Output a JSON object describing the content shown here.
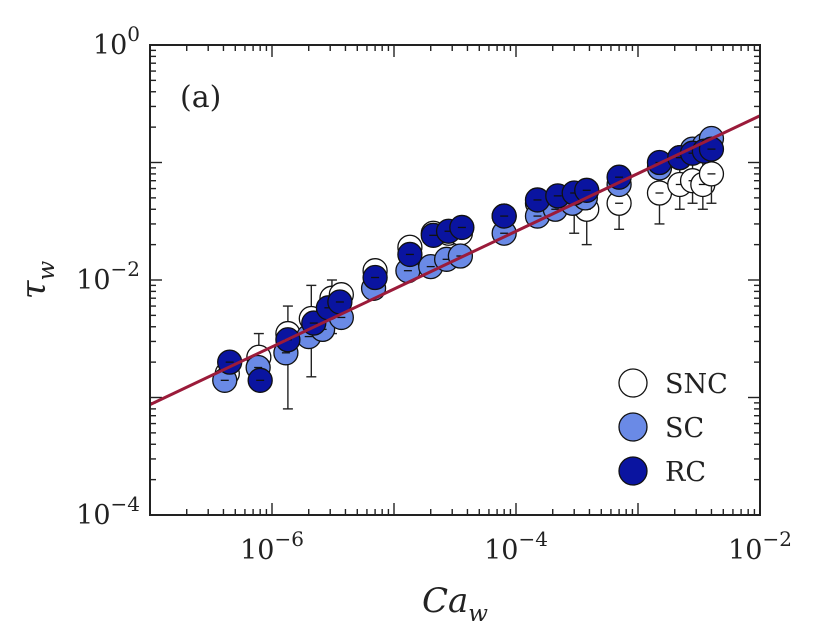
{
  "chart_data": {
    "type": "scatter",
    "panel_label": "(a)",
    "xlabel": "Ca_w",
    "ylabel": "τ_w",
    "xscale": "log",
    "yscale": "log",
    "xlim": [
      1e-07,
      0.01
    ],
    "ylim": [
      0.0001,
      1
    ],
    "grid": false,
    "legend_position": "bottom-right",
    "x_tick_labels": [
      {
        "value": 1e-06,
        "base": "10",
        "exp": "−6"
      },
      {
        "value": 0.0001,
        "base": "10",
        "exp": "−4"
      },
      {
        "value": 0.01,
        "base": "10",
        "exp": "−2"
      }
    ],
    "y_tick_labels": [
      {
        "value": 1,
        "base": "10",
        "exp": "0"
      },
      {
        "value": 0.01,
        "base": "10",
        "exp": "−2"
      },
      {
        "value": 0.0001,
        "base": "10",
        "exp": "−4"
      }
    ],
    "fit_line": {
      "name": "power-law fit",
      "color": "#9b1b3a",
      "points": [
        [
          1e-07,
          0.00087
        ],
        [
          0.01,
          0.25
        ]
      ]
    },
    "series": [
      {
        "name": "SNC",
        "fill": "#ffffff",
        "points": [
          {
            "x": 4.3e-07,
            "y": 0.0016,
            "lo": 0.0016,
            "hi": 0.0016
          },
          {
            "x": 7.8e-07,
            "y": 0.0022,
            "lo": 0.0017,
            "hi": 0.0035
          },
          {
            "x": 1.35e-06,
            "y": 0.0035,
            "lo": 0.0008,
            "hi": 0.006
          },
          {
            "x": 2.1e-06,
            "y": 0.0047,
            "lo": 0.0015,
            "hi": 0.009
          },
          {
            "x": 3.1e-06,
            "y": 0.007,
            "lo": 0.0035,
            "hi": 0.01
          },
          {
            "x": 3.7e-06,
            "y": 0.0075,
            "lo": 0.005,
            "hi": 0.009
          },
          {
            "x": 7e-06,
            "y": 0.012,
            "lo": 0.011,
            "hi": 0.013
          },
          {
            "x": 1.35e-05,
            "y": 0.019,
            "lo": 0.019,
            "hi": 0.019
          },
          {
            "x": 2.1e-05,
            "y": 0.025,
            "lo": 0.025,
            "hi": 0.025
          },
          {
            "x": 2.8e-05,
            "y": 0.025,
            "lo": 0.025,
            "hi": 0.025
          },
          {
            "x": 3.5e-05,
            "y": 0.025,
            "lo": 0.025,
            "hi": 0.025
          },
          {
            "x": 8e-05,
            "y": 0.035,
            "lo": 0.035,
            "hi": 0.035
          },
          {
            "x": 0.00015,
            "y": 0.045,
            "lo": 0.045,
            "hi": 0.045
          },
          {
            "x": 0.00021,
            "y": 0.045,
            "lo": 0.04,
            "hi": 0.05
          },
          {
            "x": 0.0003,
            "y": 0.045,
            "lo": 0.025,
            "hi": 0.055
          },
          {
            "x": 0.00038,
            "y": 0.04,
            "lo": 0.02,
            "hi": 0.06
          },
          {
            "x": 0.0007,
            "y": 0.045,
            "lo": 0.027,
            "hi": 0.06
          },
          {
            "x": 0.0015,
            "y": 0.055,
            "lo": 0.03,
            "hi": 0.08
          },
          {
            "x": 0.0022,
            "y": 0.065,
            "lo": 0.04,
            "hi": 0.09
          },
          {
            "x": 0.0028,
            "y": 0.07,
            "lo": 0.045,
            "hi": 0.1
          },
          {
            "x": 0.0034,
            "y": 0.065,
            "lo": 0.04,
            "hi": 0.1
          },
          {
            "x": 0.004,
            "y": 0.08,
            "lo": 0.045,
            "hi": 0.11
          }
        ]
      },
      {
        "name": "SC",
        "fill": "#6a8ae6",
        "points": [
          {
            "x": 4.1e-07,
            "y": 0.0014,
            "lo": 0.0014,
            "hi": 0.0014
          },
          {
            "x": 7.7e-07,
            "y": 0.0018,
            "lo": 0.0018,
            "hi": 0.0018
          },
          {
            "x": 1.3e-06,
            "y": 0.0024,
            "lo": 0.0024,
            "hi": 0.0024
          },
          {
            "x": 2e-06,
            "y": 0.0033,
            "lo": 0.0033,
            "hi": 0.0033
          },
          {
            "x": 2.6e-06,
            "y": 0.0038,
            "lo": 0.0038,
            "hi": 0.0038
          },
          {
            "x": 3.7e-06,
            "y": 0.0048,
            "lo": 0.0048,
            "hi": 0.0048
          },
          {
            "x": 6.8e-06,
            "y": 0.0085,
            "lo": 0.0085,
            "hi": 0.0085
          },
          {
            "x": 1.3e-05,
            "y": 0.012,
            "lo": 0.012,
            "hi": 0.012
          },
          {
            "x": 2e-05,
            "y": 0.013,
            "lo": 0.013,
            "hi": 0.013
          },
          {
            "x": 2.7e-05,
            "y": 0.015,
            "lo": 0.015,
            "hi": 0.015
          },
          {
            "x": 3.5e-05,
            "y": 0.016,
            "lo": 0.016,
            "hi": 0.016
          },
          {
            "x": 8e-05,
            "y": 0.025,
            "lo": 0.025,
            "hi": 0.025
          },
          {
            "x": 0.00015,
            "y": 0.035,
            "lo": 0.035,
            "hi": 0.035
          },
          {
            "x": 0.00021,
            "y": 0.04,
            "lo": 0.04,
            "hi": 0.04
          },
          {
            "x": 0.00029,
            "y": 0.045,
            "lo": 0.045,
            "hi": 0.045
          },
          {
            "x": 0.00037,
            "y": 0.05,
            "lo": 0.05,
            "hi": 0.05
          },
          {
            "x": 0.0007,
            "y": 0.065,
            "lo": 0.065,
            "hi": 0.065
          },
          {
            "x": 0.0015,
            "y": 0.09,
            "lo": 0.09,
            "hi": 0.09
          },
          {
            "x": 0.0022,
            "y": 0.11,
            "lo": 0.11,
            "hi": 0.11
          },
          {
            "x": 0.0028,
            "y": 0.13,
            "lo": 0.13,
            "hi": 0.13
          },
          {
            "x": 0.0035,
            "y": 0.14,
            "lo": 0.14,
            "hi": 0.14
          },
          {
            "x": 0.004,
            "y": 0.16,
            "lo": 0.16,
            "hi": 0.16
          }
        ]
      },
      {
        "name": "RC",
        "fill": "#0a14a0",
        "points": [
          {
            "x": 4.5e-07,
            "y": 0.002,
            "lo": 0.002,
            "hi": 0.002
          },
          {
            "x": 8e-07,
            "y": 0.0014,
            "lo": 0.0014,
            "hi": 0.0014
          },
          {
            "x": 1.35e-06,
            "y": 0.0031,
            "lo": 0.0031,
            "hi": 0.0031
          },
          {
            "x": 2.2e-06,
            "y": 0.0043,
            "lo": 0.0043,
            "hi": 0.0043
          },
          {
            "x": 2.9e-06,
            "y": 0.0058,
            "lo": 0.0058,
            "hi": 0.0058
          },
          {
            "x": 3.6e-06,
            "y": 0.0065,
            "lo": 0.0065,
            "hi": 0.0065
          },
          {
            "x": 7e-06,
            "y": 0.0105,
            "lo": 0.0105,
            "hi": 0.0105
          },
          {
            "x": 1.35e-05,
            "y": 0.0165,
            "lo": 0.0165,
            "hi": 0.0165
          },
          {
            "x": 2.1e-05,
            "y": 0.024,
            "lo": 0.024,
            "hi": 0.024
          },
          {
            "x": 2.8e-05,
            "y": 0.026,
            "lo": 0.026,
            "hi": 0.026
          },
          {
            "x": 3.6e-05,
            "y": 0.028,
            "lo": 0.028,
            "hi": 0.028
          },
          {
            "x": 8e-05,
            "y": 0.035,
            "lo": 0.035,
            "hi": 0.035
          },
          {
            "x": 0.00015,
            "y": 0.048,
            "lo": 0.048,
            "hi": 0.048
          },
          {
            "x": 0.00022,
            "y": 0.052,
            "lo": 0.052,
            "hi": 0.052
          },
          {
            "x": 0.0003,
            "y": 0.055,
            "lo": 0.055,
            "hi": 0.055
          },
          {
            "x": 0.00038,
            "y": 0.058,
            "lo": 0.058,
            "hi": 0.058
          },
          {
            "x": 0.0007,
            "y": 0.075,
            "lo": 0.075,
            "hi": 0.075
          },
          {
            "x": 0.0015,
            "y": 0.1,
            "lo": 0.1,
            "hi": 0.1
          },
          {
            "x": 0.0022,
            "y": 0.11,
            "lo": 0.11,
            "hi": 0.11
          },
          {
            "x": 0.0028,
            "y": 0.12,
            "lo": 0.12,
            "hi": 0.12
          },
          {
            "x": 0.0035,
            "y": 0.125,
            "lo": 0.125,
            "hi": 0.125
          },
          {
            "x": 0.004,
            "y": 0.13,
            "lo": 0.13,
            "hi": 0.13
          }
        ]
      }
    ]
  }
}
